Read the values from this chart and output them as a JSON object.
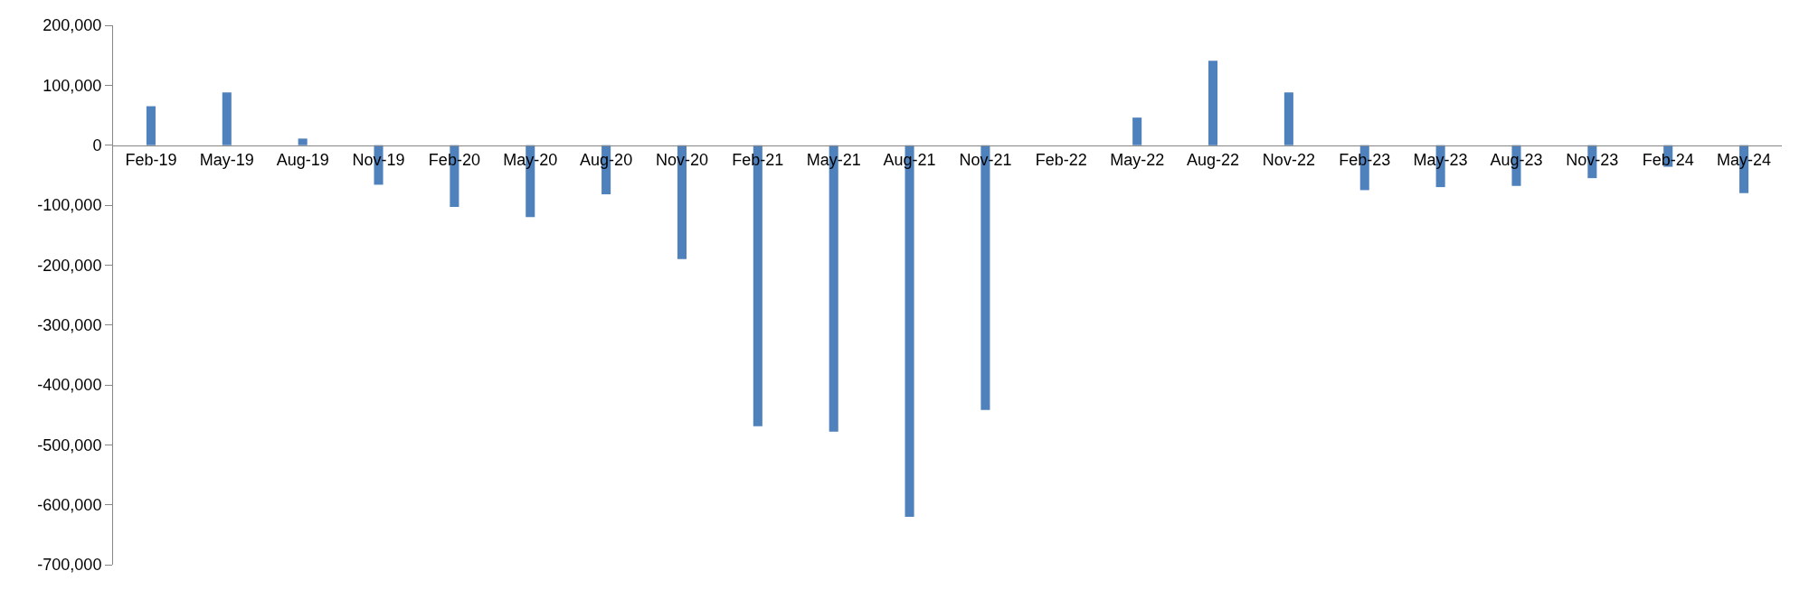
{
  "chart_data": {
    "type": "bar",
    "categories": [
      "Feb-19",
      "May-19",
      "Aug-19",
      "Nov-19",
      "Feb-20",
      "May-20",
      "Aug-20",
      "Nov-20",
      "Feb-21",
      "May-21",
      "Aug-21",
      "Nov-21",
      "Feb-22",
      "May-22",
      "Aug-22",
      "Nov-22",
      "Feb-23",
      "May-23",
      "Aug-23",
      "Nov-23",
      "Feb-24",
      "May-24"
    ],
    "values": [
      65000,
      88000,
      11000,
      -66000,
      -103000,
      -120000,
      -82000,
      -190000,
      -469000,
      -478000,
      -620000,
      -442000,
      0,
      46000,
      141000,
      88000,
      -75000,
      -70000,
      -68000,
      -55000,
      -36000,
      -80000
    ],
    "color": "#4f81bd",
    "ylim": [
      -700000,
      200000
    ],
    "yticks": [
      {
        "value": 200000,
        "label": "200,000"
      },
      {
        "value": 100000,
        "label": "100,000"
      },
      {
        "value": 0,
        "label": "0"
      },
      {
        "value": -100000,
        "label": "-100,000"
      },
      {
        "value": -200000,
        "label": "-200,000"
      },
      {
        "value": -300000,
        "label": "-300,000"
      },
      {
        "value": -400000,
        "label": "-400,000"
      },
      {
        "value": -500000,
        "label": "-500,000"
      },
      {
        "value": -600000,
        "label": "-600,000"
      },
      {
        "value": -700000,
        "label": "-700,000"
      }
    ],
    "legend": false
  }
}
